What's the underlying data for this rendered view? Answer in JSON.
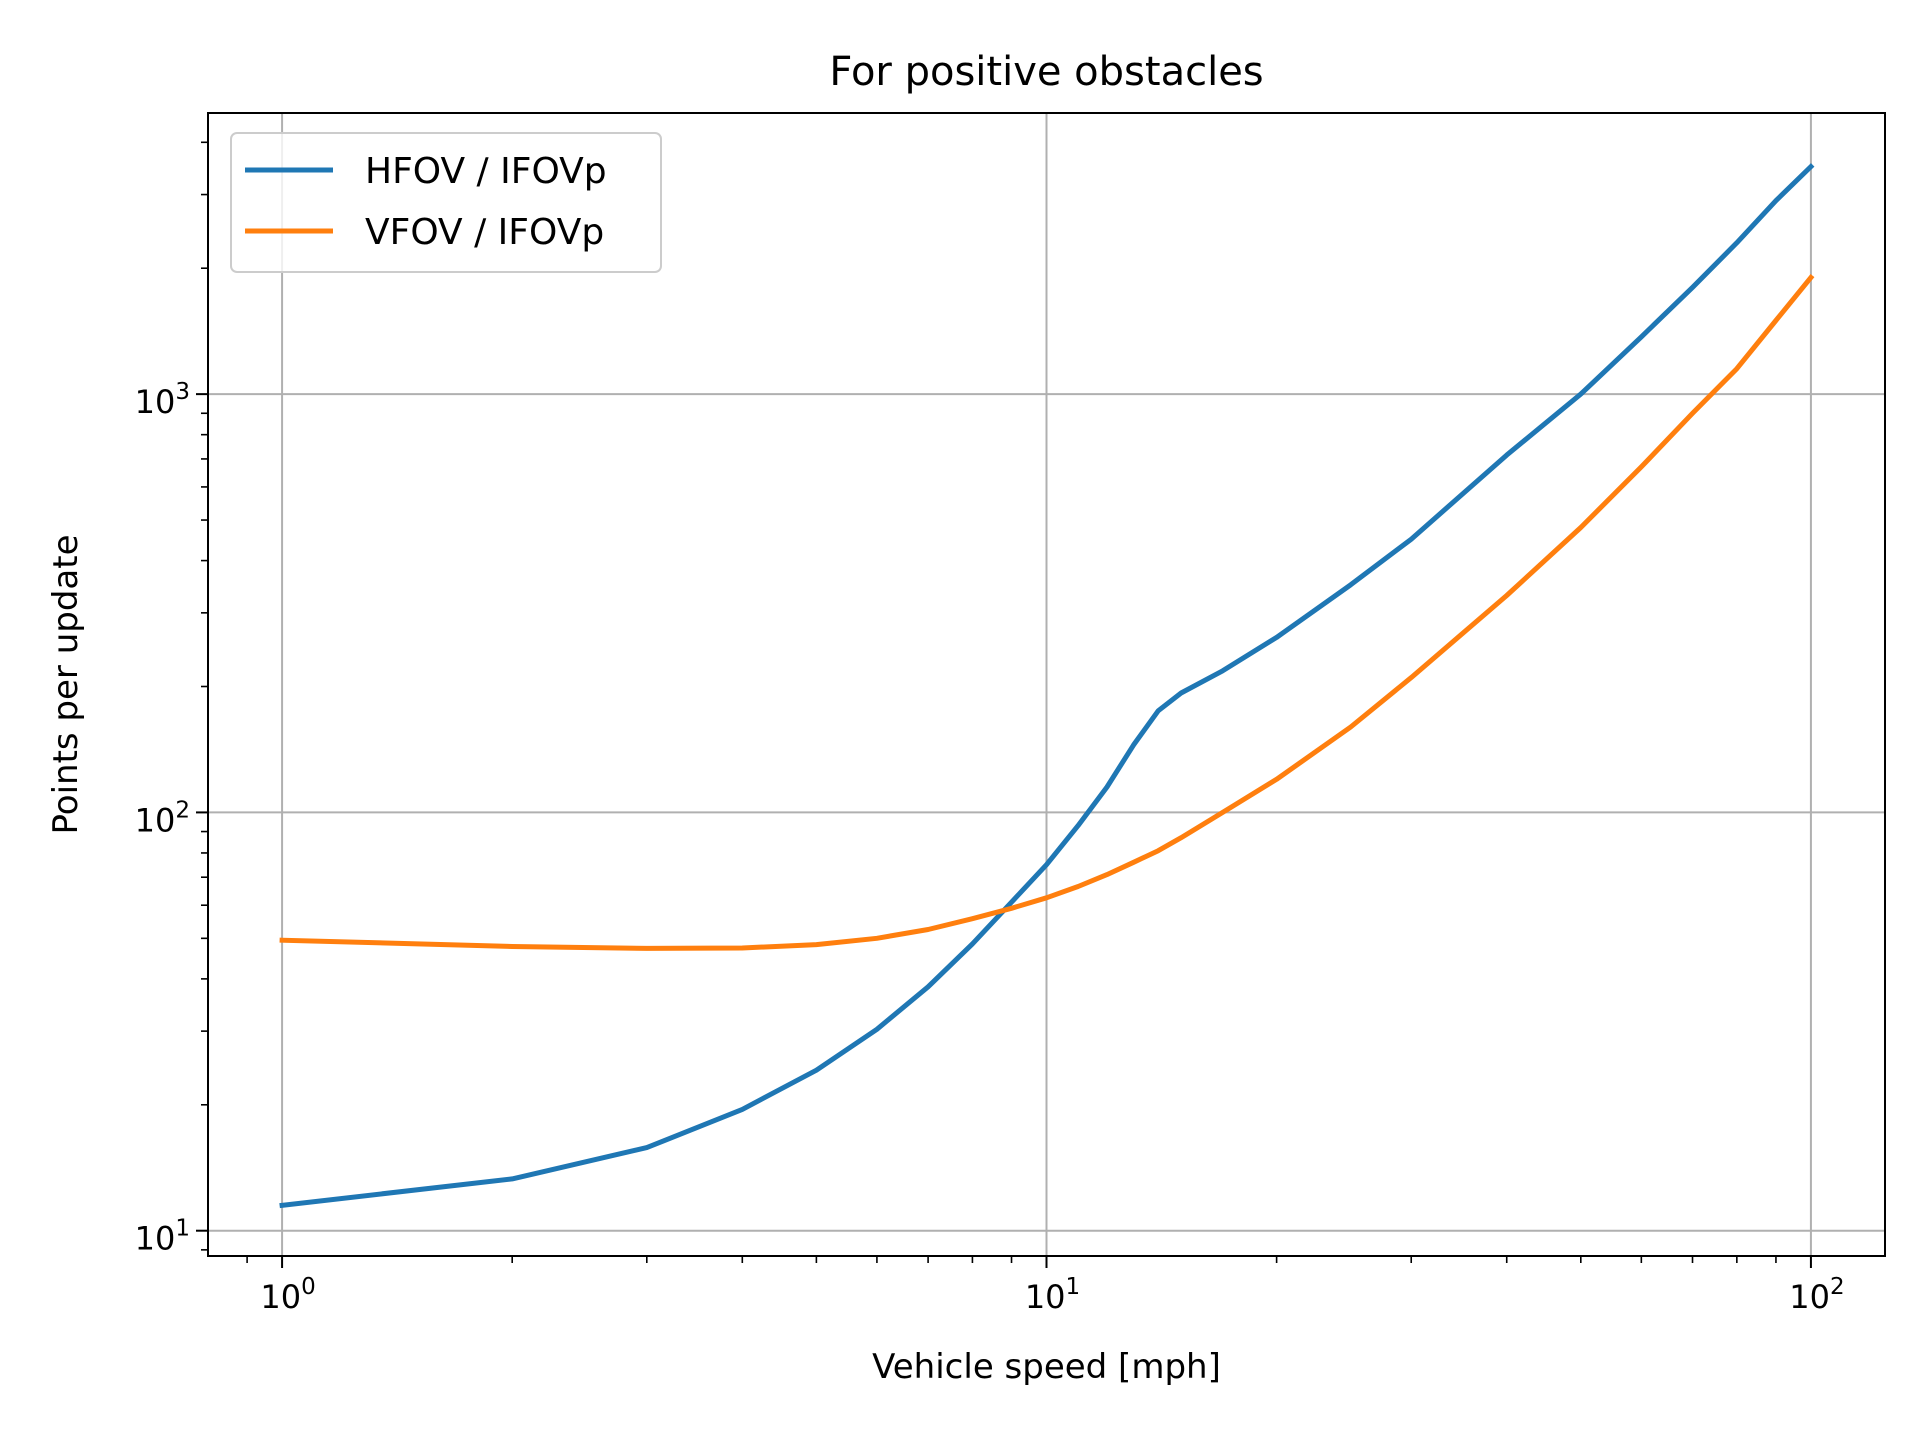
{
  "chart_data": {
    "type": "line",
    "title": "For positive obstacles",
    "xlabel": "Vehicle speed [mph]",
    "ylabel": "Points per update",
    "xscale": "log",
    "yscale": "log",
    "xlim": [
      0.8,
      125
    ],
    "ylim": [
      8.7,
      4700
    ],
    "grid": true,
    "legend_position": "upper-left",
    "x_ticks": [
      1,
      10,
      100
    ],
    "x_tick_labels": [
      {
        "base": "10",
        "exp": "0"
      },
      {
        "base": "10",
        "exp": "1"
      },
      {
        "base": "10",
        "exp": "2"
      }
    ],
    "y_ticks": [
      10,
      100,
      1000
    ],
    "y_tick_labels": [
      {
        "base": "10",
        "exp": "1"
      },
      {
        "base": "10",
        "exp": "2"
      },
      {
        "base": "10",
        "exp": "3"
      }
    ],
    "series": [
      {
        "name": "HFOV / IFOVp",
        "color": "#1f77b4",
        "x": [
          1,
          2,
          3,
          4,
          5,
          6,
          7,
          8,
          9,
          10,
          11,
          12,
          13,
          14,
          15,
          17,
          20,
          25,
          30,
          40,
          50,
          60,
          70,
          80,
          90,
          100
        ],
        "y": [
          11.5,
          13.3,
          15.8,
          19.5,
          24.2,
          30.3,
          38.3,
          48.5,
          61,
          75,
          93,
          115,
          145,
          175,
          193,
          218,
          262,
          350,
          450,
          715,
          1000,
          1370,
          1800,
          2300,
          2900,
          3500
        ]
      },
      {
        "name": "VFOV / IFOVp",
        "color": "#ff7f0e",
        "x": [
          1,
          2,
          3,
          4,
          5,
          6,
          7,
          8,
          9,
          10,
          11,
          12,
          13,
          14,
          15,
          17,
          20,
          25,
          30,
          40,
          50,
          60,
          70,
          80,
          90,
          100
        ],
        "y": [
          49.5,
          47.8,
          47.3,
          47.4,
          48.3,
          50,
          52.5,
          55.7,
          59,
          62.5,
          66.5,
          71,
          76,
          81,
          87,
          100,
          120,
          160,
          210,
          330,
          480,
          670,
          900,
          1150,
          1500,
          1900
        ]
      }
    ]
  }
}
